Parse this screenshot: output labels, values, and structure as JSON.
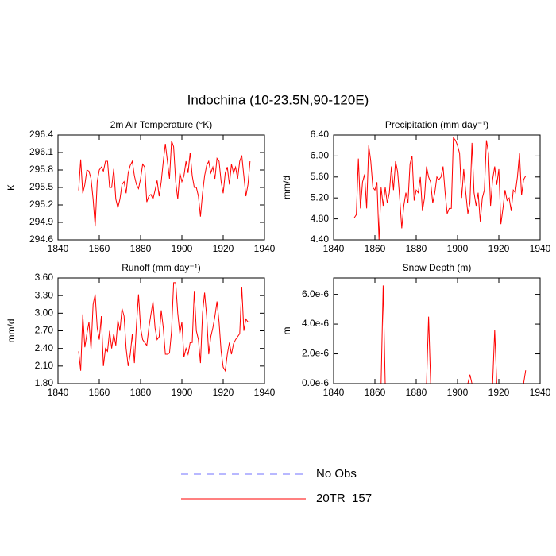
{
  "title": "Indochina (10-23.5N,90-120E)",
  "legend": [
    {
      "name": "No Obs",
      "color": "#7070ff",
      "dashed": true
    },
    {
      "name": "20TR_157",
      "color": "#ff0000",
      "dashed": false
    }
  ],
  "chart_data": [
    {
      "type": "line",
      "title": "2m Air Temperature (°K)",
      "y_label": "K",
      "x": [
        1850,
        1851,
        1852,
        1853,
        1854,
        1855,
        1856,
        1857,
        1858,
        1859,
        1860,
        1861,
        1862,
        1863,
        1864,
        1865,
        1866,
        1867,
        1868,
        1869,
        1870,
        1871,
        1872,
        1873,
        1874,
        1875,
        1876,
        1877,
        1878,
        1879,
        1880,
        1881,
        1882,
        1883,
        1884,
        1885,
        1886,
        1887,
        1888,
        1889,
        1890,
        1891,
        1892,
        1893,
        1894,
        1895,
        1896,
        1897,
        1898,
        1899,
        1900,
        1901,
        1902,
        1903,
        1904,
        1905,
        1906,
        1907,
        1908,
        1909,
        1910,
        1911,
        1912,
        1913,
        1914,
        1915,
        1916,
        1917,
        1918,
        1919,
        1920,
        1921,
        1922,
        1923,
        1924,
        1925,
        1926,
        1927,
        1928,
        1929,
        1930,
        1931,
        1932,
        1933
      ],
      "series": [
        {
          "color": "#ff0000",
          "values": [
            295.45,
            295.98,
            295.4,
            295.55,
            295.8,
            295.78,
            295.65,
            295.3,
            294.83,
            295.6,
            295.8,
            295.85,
            295.78,
            295.95,
            295.95,
            295.5,
            295.5,
            295.82,
            295.3,
            295.15,
            295.3,
            295.55,
            295.6,
            295.4,
            295.75,
            295.88,
            295.95,
            295.7,
            295.55,
            295.48,
            295.65,
            295.9,
            295.85,
            295.25,
            295.35,
            295.38,
            295.3,
            295.45,
            295.62,
            295.35,
            295.6,
            295.95,
            296.25,
            295.95,
            295.65,
            296.3,
            296.2,
            295.6,
            295.3,
            295.75,
            295.6,
            295.7,
            295.95,
            295.75,
            296.1,
            295.7,
            295.5,
            295.5,
            295.35,
            295.0,
            295.4,
            295.7,
            295.88,
            295.95,
            295.75,
            295.85,
            295.65,
            296.0,
            295.95,
            295.6,
            295.4,
            295.75,
            295.85,
            295.55,
            295.9,
            295.75,
            295.85,
            295.65,
            295.95,
            296.05,
            295.7,
            295.35,
            295.55,
            295.95
          ]
        }
      ],
      "xlim": [
        1840,
        1940
      ],
      "xticks": [
        1840,
        1860,
        1880,
        1900,
        1920,
        1940
      ],
      "ylim": [
        294.6,
        296.4
      ],
      "yticks": [
        294.6,
        294.9,
        295.2,
        295.5,
        295.8,
        296.1,
        296.4
      ]
    },
    {
      "type": "line",
      "title": "Precipitation (mm day⁻¹)",
      "y_label": "mm/d",
      "x": [
        1850,
        1851,
        1852,
        1853,
        1854,
        1855,
        1856,
        1857,
        1858,
        1859,
        1860,
        1861,
        1862,
        1863,
        1864,
        1865,
        1866,
        1867,
        1868,
        1869,
        1870,
        1871,
        1872,
        1873,
        1874,
        1875,
        1876,
        1877,
        1878,
        1879,
        1880,
        1881,
        1882,
        1883,
        1884,
        1885,
        1886,
        1887,
        1888,
        1889,
        1890,
        1891,
        1892,
        1893,
        1894,
        1895,
        1896,
        1897,
        1898,
        1899,
        1900,
        1901,
        1902,
        1903,
        1904,
        1905,
        1906,
        1907,
        1908,
        1909,
        1910,
        1911,
        1912,
        1913,
        1914,
        1915,
        1916,
        1917,
        1918,
        1919,
        1920,
        1921,
        1922,
        1923,
        1924,
        1925,
        1926,
        1927,
        1928,
        1929,
        1930,
        1931,
        1932,
        1933
      ],
      "series": [
        {
          "color": "#ff0000",
          "values": [
            4.82,
            4.88,
            5.95,
            5.0,
            5.5,
            5.65,
            5.0,
            6.2,
            5.9,
            5.4,
            5.35,
            5.5,
            4.4,
            5.4,
            5.05,
            5.4,
            5.1,
            5.3,
            5.8,
            5.35,
            5.9,
            5.7,
            5.2,
            4.62,
            5.05,
            5.3,
            5.1,
            5.85,
            6.0,
            5.15,
            5.35,
            5.3,
            5.6,
            4.95,
            5.2,
            5.8,
            5.6,
            5.5,
            5.1,
            5.3,
            5.6,
            5.55,
            5.6,
            5.8,
            5.3,
            4.9,
            5.0,
            5.0,
            6.35,
            6.3,
            6.2,
            6.05,
            5.2,
            5.75,
            5.3,
            4.9,
            5.1,
            6.25,
            5.3,
            5.05,
            5.3,
            4.75,
            5.2,
            5.35,
            6.3,
            6.05,
            5.05,
            5.55,
            5.8,
            5.45,
            5.75,
            4.7,
            5.0,
            5.35,
            5.15,
            5.2,
            4.95,
            5.35,
            5.3,
            5.6,
            6.05,
            5.25,
            5.55,
            5.62
          ]
        }
      ],
      "xlim": [
        1840,
        1940
      ],
      "xticks": [
        1840,
        1860,
        1880,
        1900,
        1920,
        1940
      ],
      "ylim": [
        4.4,
        6.4
      ],
      "yticks": [
        {
          "value": 4.4,
          "label": "4.40"
        },
        {
          "value": 4.8,
          "label": "4.80"
        },
        {
          "value": 5.2,
          "label": "5.20"
        },
        {
          "value": 5.6,
          "label": "5.60"
        },
        {
          "value": 6.0,
          "label": "6.00"
        },
        {
          "value": 6.4,
          "label": "6.40"
        }
      ]
    },
    {
      "type": "line",
      "title": "Runoff (mm day⁻¹)",
      "y_label": "mm/d",
      "x": [
        1850,
        1851,
        1852,
        1853,
        1854,
        1855,
        1856,
        1857,
        1858,
        1859,
        1860,
        1861,
        1862,
        1863,
        1864,
        1865,
        1866,
        1867,
        1868,
        1869,
        1870,
        1871,
        1872,
        1873,
        1874,
        1875,
        1876,
        1877,
        1878,
        1879,
        1880,
        1881,
        1882,
        1883,
        1884,
        1885,
        1886,
        1887,
        1888,
        1889,
        1890,
        1891,
        1892,
        1893,
        1894,
        1895,
        1896,
        1897,
        1898,
        1899,
        1900,
        1901,
        1902,
        1903,
        1904,
        1905,
        1906,
        1907,
        1908,
        1909,
        1910,
        1911,
        1912,
        1913,
        1914,
        1915,
        1916,
        1917,
        1918,
        1919,
        1920,
        1921,
        1922,
        1923,
        1924,
        1925,
        1926,
        1927,
        1928,
        1929,
        1930,
        1931,
        1932,
        1933
      ],
      "series": [
        {
          "color": "#ff0000",
          "values": [
            2.35,
            2.02,
            2.98,
            2.42,
            2.65,
            2.85,
            2.38,
            3.15,
            3.32,
            2.75,
            2.55,
            2.95,
            2.1,
            2.4,
            2.35,
            2.7,
            2.4,
            2.65,
            2.45,
            2.88,
            2.7,
            3.08,
            2.95,
            2.4,
            2.1,
            2.3,
            2.65,
            2.15,
            2.8,
            3.32,
            2.75,
            2.55,
            2.5,
            2.45,
            2.75,
            2.98,
            3.2,
            2.75,
            2.55,
            2.6,
            3.05,
            2.75,
            2.3,
            2.3,
            2.32,
            2.7,
            3.52,
            3.52,
            3.0,
            2.65,
            2.85,
            2.25,
            2.4,
            2.3,
            2.5,
            2.5,
            3.38,
            2.7,
            2.55,
            2.15,
            3.0,
            3.35,
            2.95,
            2.3,
            2.6,
            2.75,
            2.95,
            3.2,
            2.85,
            2.35,
            2.08,
            2.02,
            2.3,
            2.5,
            2.3,
            2.48,
            2.55,
            2.6,
            2.65,
            3.45,
            2.7,
            2.9,
            2.85,
            2.85
          ]
        }
      ],
      "xlim": [
        1840,
        1940
      ],
      "xticks": [
        1840,
        1860,
        1880,
        1900,
        1920,
        1940
      ],
      "ylim": [
        1.8,
        3.6
      ],
      "yticks": [
        {
          "value": 1.8,
          "label": "1.80"
        },
        {
          "value": 2.1,
          "label": "2.10"
        },
        {
          "value": 2.4,
          "label": "2.40"
        },
        {
          "value": 2.7,
          "label": "2.70"
        },
        {
          "value": 3.0,
          "label": "3.00"
        },
        {
          "value": 3.3,
          "label": "3.30"
        },
        {
          "value": 3.6,
          "label": "3.60"
        }
      ]
    },
    {
      "type": "line",
      "title": "Snow Depth (m)",
      "y_label": "m",
      "x": [
        1850,
        1851,
        1852,
        1853,
        1854,
        1855,
        1856,
        1857,
        1858,
        1859,
        1860,
        1861,
        1862,
        1863,
        1864,
        1865,
        1866,
        1867,
        1868,
        1869,
        1870,
        1871,
        1872,
        1873,
        1874,
        1875,
        1876,
        1877,
        1878,
        1879,
        1880,
        1881,
        1882,
        1883,
        1884,
        1885,
        1886,
        1887,
        1888,
        1889,
        1890,
        1891,
        1892,
        1893,
        1894,
        1895,
        1896,
        1897,
        1898,
        1899,
        1900,
        1901,
        1902,
        1903,
        1904,
        1905,
        1906,
        1907,
        1908,
        1909,
        1910,
        1911,
        1912,
        1913,
        1914,
        1915,
        1916,
        1917,
        1918,
        1919,
        1920,
        1921,
        1922,
        1923,
        1924,
        1925,
        1926,
        1927,
        1928,
        1929,
        1930,
        1931,
        1932,
        1933
      ],
      "series": [
        {
          "color": "#ff0000",
          "values": [
            0,
            0,
            0,
            0,
            0,
            0,
            0,
            0,
            0,
            0,
            0,
            0,
            0,
            0,
            6.6e-06,
            0,
            0,
            0,
            0,
            0,
            0,
            0,
            0,
            0,
            0,
            0,
            0,
            0,
            0,
            0,
            0,
            0,
            0,
            0,
            0,
            0,
            4.5e-06,
            0,
            0,
            0,
            0,
            0,
            0,
            0,
            0,
            0,
            0,
            0,
            0,
            0,
            0,
            0,
            0,
            0,
            0,
            0,
            6e-07,
            0,
            0,
            0,
            0,
            0,
            0,
            0,
            0,
            0,
            0,
            0,
            3.6e-06,
            0,
            0,
            0,
            0,
            0,
            0,
            0,
            0,
            0,
            0,
            0,
            0,
            0,
            0,
            9e-07
          ]
        }
      ],
      "xlim": [
        1840,
        1940
      ],
      "xticks": [
        1840,
        1860,
        1880,
        1900,
        1920,
        1940
      ],
      "ylim": [
        0,
        7.1e-06
      ],
      "yticks": [
        {
          "value": 0,
          "label": "0.0e-6"
        },
        {
          "value": 2e-06,
          "label": "2.0e-6"
        },
        {
          "value": 4e-06,
          "label": "4.0e-6"
        },
        {
          "value": 6e-06,
          "label": "6.0e-6"
        }
      ]
    }
  ]
}
